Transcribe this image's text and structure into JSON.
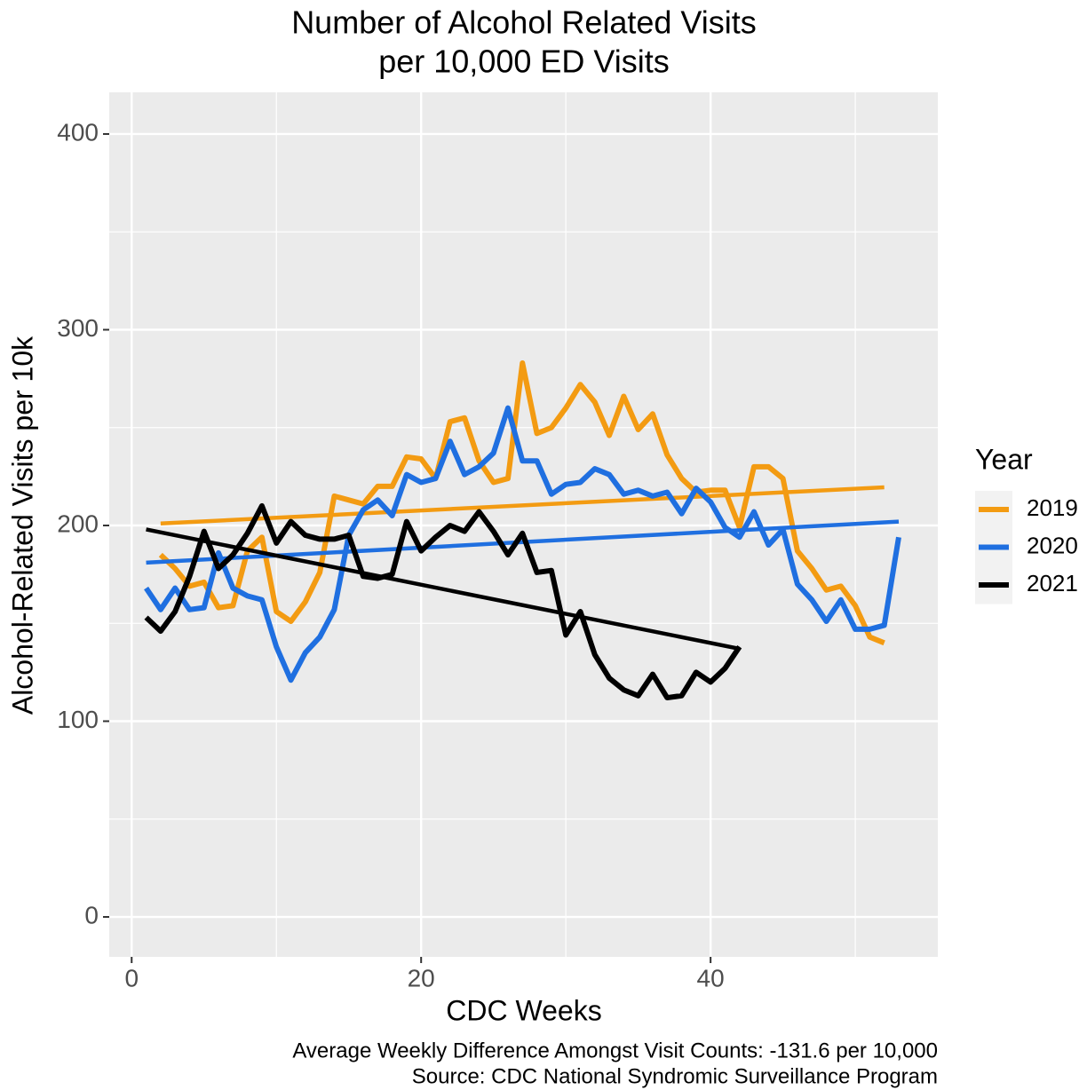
{
  "chart_data": {
    "type": "line",
    "title": [
      "Number of Alcohol Related Visits",
      "per 10,000 ED Visits"
    ],
    "x_label": "CDC Weeks",
    "y_label": "Alcohol-Related Visits per 10k",
    "caption": [
      "Average Weekly Difference Amongst Visit Counts: -131.6 per 10,000",
      "Source: CDC National Syndromic Surveillance Program"
    ],
    "legend_title": "Year",
    "legend_position": "right",
    "grid": true,
    "xlim": [
      -1.55,
      55.7
    ],
    "ylim": [
      -20.4,
      421.3
    ],
    "xticks": [
      0,
      20,
      40
    ],
    "yticks": [
      0,
      100,
      200,
      300,
      400
    ],
    "x_minor_breaks": [
      10,
      30,
      50
    ],
    "y_minor_breaks": [
      50,
      150,
      250,
      350
    ],
    "x": [
      1,
      2,
      3,
      4,
      5,
      6,
      7,
      8,
      9,
      10,
      11,
      12,
      13,
      14,
      15,
      16,
      17,
      18,
      19,
      20,
      21,
      22,
      23,
      24,
      25,
      26,
      27,
      28,
      29,
      30,
      31,
      32,
      33,
      34,
      35,
      36,
      37,
      38,
      39,
      40,
      41,
      42,
      43,
      44,
      45,
      46,
      47,
      48,
      49,
      50,
      51,
      52,
      53
    ],
    "series": [
      {
        "name": "2019",
        "color": "#f39b12",
        "values": [
          null,
          185,
          178,
          169,
          171,
          158,
          159,
          187,
          194,
          156,
          151,
          161,
          176,
          215,
          213,
          211,
          220,
          220,
          235,
          234,
          224,
          253,
          255,
          233,
          222,
          224,
          283,
          247,
          250,
          260,
          272,
          263,
          246,
          266,
          249,
          257,
          236,
          224,
          217,
          218,
          218,
          199,
          230,
          230,
          224,
          187,
          178,
          167,
          169,
          159,
          143,
          140,
          null
        ],
        "trend": {
          "x": [
            2,
            52
          ],
          "values": [
            201,
            219.5
          ]
        }
      },
      {
        "name": "2020",
        "color": "#1f6fe0",
        "values": [
          168,
          157,
          168,
          157,
          158,
          186,
          168,
          164,
          162,
          138,
          121,
          135,
          143,
          157,
          195,
          208,
          213,
          205,
          226,
          222,
          224,
          243,
          226,
          230,
          237,
          260,
          233,
          233,
          216,
          221,
          222,
          229,
          226,
          216,
          218,
          215,
          217,
          206,
          219,
          212,
          199,
          194,
          207,
          190,
          198,
          170,
          162,
          151,
          162,
          147,
          147,
          149,
          194
        ],
        "trend": {
          "x": [
            1,
            53
          ],
          "values": [
            181,
            202
          ]
        }
      },
      {
        "name": "2021",
        "color": "#000000",
        "values": [
          153,
          146,
          156,
          174,
          197,
          178,
          185,
          196,
          210,
          191,
          202,
          195,
          193,
          193,
          195,
          174,
          173,
          175,
          202,
          187,
          194,
          200,
          197,
          207,
          197,
          185,
          196,
          176,
          177,
          144,
          156,
          134,
          122,
          116,
          113,
          124,
          112,
          113,
          125,
          120,
          127,
          138,
          null,
          null,
          null,
          null,
          null,
          null,
          null,
          null,
          null,
          null,
          null
        ],
        "trend": {
          "x": [
            1,
            42
          ],
          "values": [
            198,
            137
          ]
        }
      }
    ]
  }
}
